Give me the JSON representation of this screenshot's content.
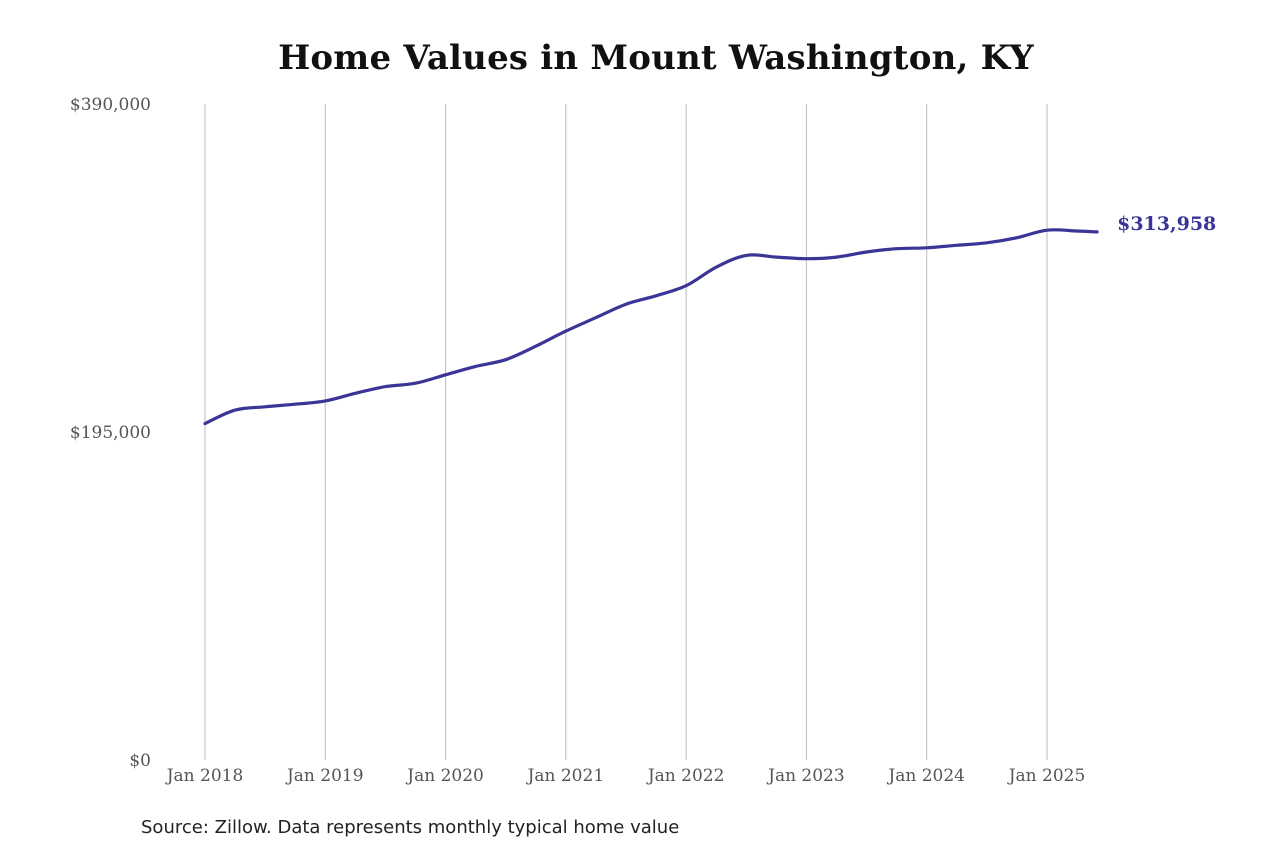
{
  "chart_data": {
    "type": "line",
    "title": "Home Values in Mount Washington, KY",
    "xlabel": "",
    "ylabel": "",
    "ylim": [
      0,
      390000
    ],
    "y_ticks": [
      {
        "value": 0,
        "label": "$0"
      },
      {
        "value": 195000,
        "label": "$195,000"
      },
      {
        "value": 390000,
        "label": "$390,000"
      }
    ],
    "x_ticks": [
      {
        "value": "2018-01",
        "label": "Jan 2018"
      },
      {
        "value": "2019-01",
        "label": "Jan 2019"
      },
      {
        "value": "2020-01",
        "label": "Jan 2020"
      },
      {
        "value": "2021-01",
        "label": "Jan 2021"
      },
      {
        "value": "2022-01",
        "label": "Jan 2022"
      },
      {
        "value": "2023-01",
        "label": "Jan 2023"
      },
      {
        "value": "2024-01",
        "label": "Jan 2024"
      },
      {
        "value": "2025-01",
        "label": "Jan 2025"
      }
    ],
    "grid": "vertical",
    "line_color": "#3a3597",
    "end_label": "$313,958",
    "series": [
      {
        "values": [
          {
            "x": "2018-01",
            "y": 200000
          },
          {
            "x": "2018-04",
            "y": 208000
          },
          {
            "x": "2018-07",
            "y": 210000
          },
          {
            "x": "2018-10",
            "y": 211500
          },
          {
            "x": "2019-01",
            "y": 213500
          },
          {
            "x": "2019-04",
            "y": 218000
          },
          {
            "x": "2019-07",
            "y": 222000
          },
          {
            "x": "2019-10",
            "y": 224000
          },
          {
            "x": "2020-01",
            "y": 229000
          },
          {
            "x": "2020-04",
            "y": 234000
          },
          {
            "x": "2020-07",
            "y": 238000
          },
          {
            "x": "2020-10",
            "y": 246000
          },
          {
            "x": "2021-01",
            "y": 255000
          },
          {
            "x": "2021-04",
            "y": 263000
          },
          {
            "x": "2021-07",
            "y": 271000
          },
          {
            "x": "2021-10",
            "y": 276000
          },
          {
            "x": "2022-01",
            "y": 282000
          },
          {
            "x": "2022-04",
            "y": 293000
          },
          {
            "x": "2022-07",
            "y": 300000
          },
          {
            "x": "2022-10",
            "y": 299000
          },
          {
            "x": "2023-01",
            "y": 298000
          },
          {
            "x": "2023-04",
            "y": 299000
          },
          {
            "x": "2023-07",
            "y": 302000
          },
          {
            "x": "2023-10",
            "y": 304000
          },
          {
            "x": "2024-01",
            "y": 304500
          },
          {
            "x": "2024-04",
            "y": 306000
          },
          {
            "x": "2024-07",
            "y": 307500
          },
          {
            "x": "2024-10",
            "y": 310500
          },
          {
            "x": "2025-01",
            "y": 315000
          },
          {
            "x": "2025-04",
            "y": 314500
          },
          {
            "x": "2025-06",
            "y": 313958
          }
        ]
      }
    ]
  },
  "footer": {
    "source": "Source: Zillow. Data represents monthly typical home value"
  }
}
